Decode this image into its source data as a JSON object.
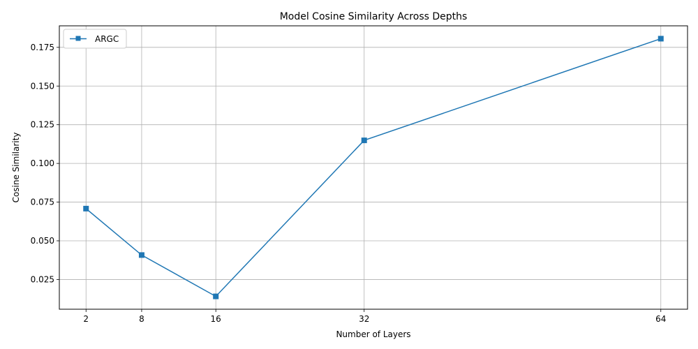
{
  "chart_data": {
    "type": "line",
    "title": "Model Cosine Similarity Across Depths",
    "xlabel": "Number of Layers",
    "ylabel": "Cosine Similarity",
    "x": [
      2,
      8,
      16,
      32,
      64
    ],
    "x_tick_labels": [
      "2",
      "8",
      "16",
      "32",
      "64"
    ],
    "xlim": [
      -0.88,
      66.88
    ],
    "ylim": [
      0.0058,
      0.1889
    ],
    "y_ticks": [
      0.025,
      0.05,
      0.075,
      0.1,
      0.125,
      0.15,
      0.175
    ],
    "y_tick_labels": [
      "0.025",
      "0.050",
      "0.075",
      "0.100",
      "0.125",
      "0.150",
      "0.175"
    ],
    "grid": true,
    "legend_position": "top-left",
    "series": [
      {
        "name": "ARGC",
        "values": [
          0.0708,
          0.0408,
          0.0141,
          0.1149,
          0.1806
        ],
        "color": "#1f77b4",
        "marker": "square"
      }
    ]
  }
}
